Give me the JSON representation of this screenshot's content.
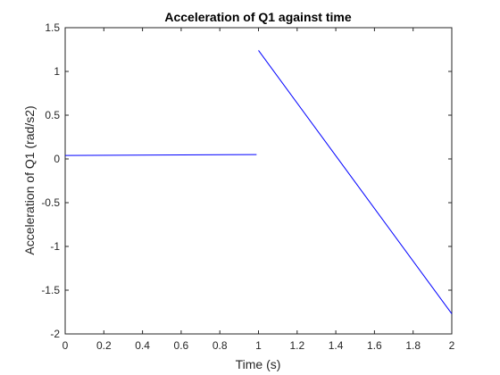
{
  "chart_data": {
    "type": "line",
    "title": "Acceleration of Q1 against time",
    "xlabel": "Time (s)",
    "ylabel": "Acceleration of Q1 (rad/s2)",
    "xlim": [
      0,
      2
    ],
    "ylim": [
      -2,
      1.5
    ],
    "x_ticks": [
      0,
      0.2,
      0.4,
      0.6,
      0.8,
      1,
      1.2,
      1.4,
      1.6,
      1.8,
      2
    ],
    "x_tick_labels": [
      "0",
      "0.2",
      "0.4",
      "0.6",
      "0.8",
      "1",
      "1.2",
      "1.4",
      "1.6",
      "1.8",
      "2"
    ],
    "y_ticks": [
      -2,
      -1.5,
      -1,
      -0.5,
      0,
      0.5,
      1,
      1.5
    ],
    "y_tick_labels": [
      "-2",
      "-1.5",
      "-1",
      "-0.5",
      "0",
      "0.5",
      "1",
      "1.5"
    ],
    "grid": false,
    "box": true,
    "series": [
      {
        "segments": [
          {
            "x": [
              0,
              0.99
            ],
            "y": [
              0.04,
              0.05
            ]
          },
          {
            "x": [
              1.0,
              2.0
            ],
            "y": [
              1.24,
              -1.77
            ]
          }
        ]
      }
    ],
    "colors": {
      "line": "#0000ff",
      "axes": "#262626",
      "background": "#ffffff"
    }
  }
}
